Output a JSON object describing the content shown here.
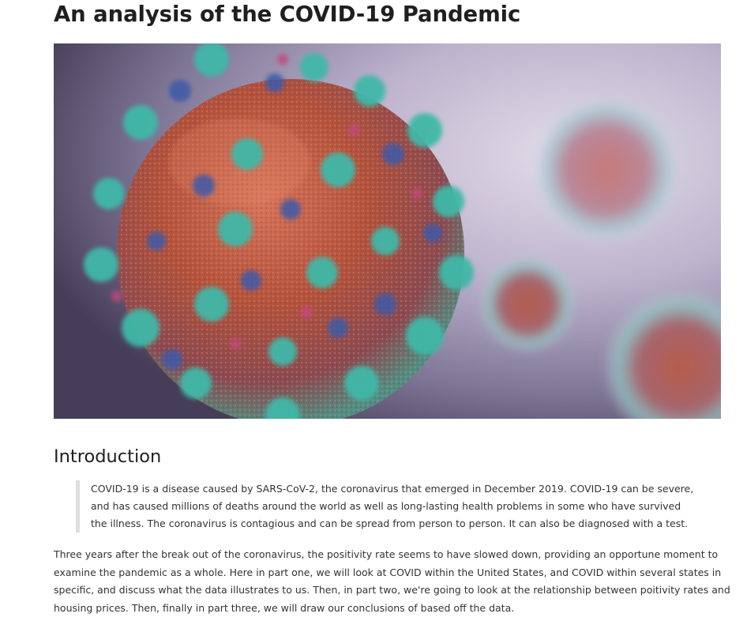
{
  "article": {
    "title": "An analysis of the COVID-19 Pandemic",
    "hero_image": "coronavirus-illustration",
    "colors": {
      "text": "#1f1f1f",
      "body_text": "#333333",
      "quote_border": "#dedede",
      "virus_core": "#b5533c",
      "virus_spike_teal": "#3fb8a8",
      "virus_spike_blue": "#3e5aa8",
      "virus_spike_pink": "#c2497c"
    }
  },
  "introduction": {
    "heading": "Introduction",
    "quote_lines": [
      "COVID-19 is a disease caused by SARS-CoV-2, the coronavirus that emerged in December 2019. COVID-19 can be severe,",
      "and has caused millions of deaths around the world as well as long-lasting health problems in some who have survived",
      "the illness. The coronavirus is contagious and can be spread from person to person. It can also be diagnosed with a test."
    ],
    "paragraph_lines": [
      "Three years after the break out of the coronavirus, the positivity rate seems to have slowed down, providing an opportune moment to",
      "examine the pandemic as a whole. Here in part one, we will look at COVID within the United States, and COVID within several states in",
      "specific, and discuss what the data illustrates to us. Then, in part two, we're going to look at the relationship between poitivity rates and",
      "housing prices. Then, finally in part three, we will draw our conclusions of based off the data."
    ]
  }
}
